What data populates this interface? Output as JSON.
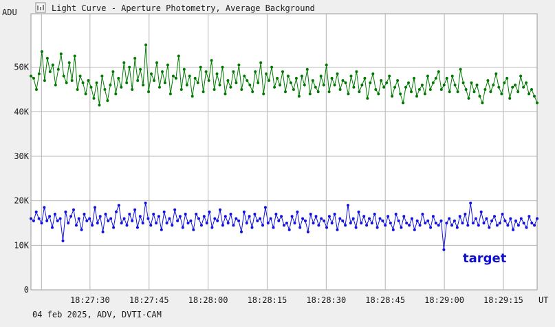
{
  "window": {
    "title": "Light Curve - Aperture Photometry, Average Background",
    "icon": "chart-icon"
  },
  "footer": {
    "date_source": "04 feb 2025, ADV, DVTI-CAM"
  },
  "chart_data": {
    "type": "line",
    "title": "Light Curve - Aperture Photometry, Average Background",
    "ylabel": "ADU",
    "xlabel": "UT",
    "ylim": [
      0,
      62000
    ],
    "xlim": [
      0,
      120
    ],
    "y_ticks": [
      {
        "value": 0,
        "label": "0"
      },
      {
        "value": 10000,
        "label": "10K"
      },
      {
        "value": 20000,
        "label": "20K"
      },
      {
        "value": 30000,
        "label": "30K"
      },
      {
        "value": 40000,
        "label": "40K"
      },
      {
        "value": 50000,
        "label": "50K"
      }
    ],
    "x_ticks": [
      {
        "value": 14,
        "label": "18:27:30"
      },
      {
        "value": 28,
        "label": "18:27:45"
      },
      {
        "value": 42,
        "label": "18:28:00"
      },
      {
        "value": 56,
        "label": "18:28:15"
      },
      {
        "value": 70,
        "label": "18:28:30"
      },
      {
        "value": 84,
        "label": "18:28:45"
      },
      {
        "value": 98,
        "label": "18:29:00"
      },
      {
        "value": 112,
        "label": "18:29:15"
      }
    ],
    "grid": true,
    "annotation": "target",
    "series": [
      {
        "color": "#007a00",
        "mean": 46500,
        "amplitude": 3200,
        "values": [
          48000,
          47500,
          45000,
          48500,
          53500,
          47000,
          52000,
          49000,
          50500,
          46000,
          49500,
          53000,
          48000,
          46500,
          51000,
          47000,
          52500,
          45000,
          48000,
          46500,
          44000,
          47000,
          45500,
          43000,
          46500,
          41500,
          48000,
          45000,
          42500,
          46000,
          49000,
          44000,
          47500,
          45500,
          51000,
          46500,
          50000,
          45000,
          52000,
          47000,
          49500,
          46000,
          55000,
          44500,
          48500,
          47000,
          51000,
          45500,
          49000,
          46500,
          50500,
          44000,
          48000,
          47500,
          52500,
          45000,
          49500,
          46000,
          48000,
          43500,
          47500,
          46500,
          50000,
          44500,
          49000,
          47000,
          51500,
          45000,
          48500,
          46000,
          50000,
          44000,
          47000,
          45500,
          49000,
          46500,
          50500,
          45000,
          48000,
          47000,
          46000,
          44500,
          49000,
          46500,
          51000,
          44000,
          48500,
          47000,
          50000,
          45500,
          47500,
          46000,
          49000,
          44500,
          48000,
          46500,
          45000,
          47500,
          43500,
          48000,
          46000,
          49500,
          44000,
          47000,
          45500,
          44500,
          48000,
          46000,
          50500,
          44500,
          47500,
          46000,
          48500,
          45000,
          47000,
          46500,
          44000,
          48000,
          45500,
          49000,
          44500,
          46000,
          47500,
          43000,
          46500,
          48500,
          45000,
          44000,
          47000,
          45500,
          46500,
          48000,
          43500,
          45500,
          47000,
          44000,
          42000,
          45500,
          46500,
          44500,
          47500,
          43500,
          45000,
          46000,
          44000,
          48000,
          45000,
          46500,
          47500,
          49000,
          45000,
          46000,
          47500,
          44500,
          48000,
          46000,
          44500,
          49500,
          46500,
          45000,
          43000,
          46500,
          44500,
          46000,
          43500,
          42000,
          45000,
          47000,
          44500,
          46000,
          48500,
          45500,
          44000,
          46500,
          47500,
          43000,
          45500,
          46000,
          44500,
          48000,
          45500,
          46500,
          44000,
          45000,
          43500,
          42000
        ]
      },
      {
        "color": "#1010e0",
        "mean": 15300,
        "amplitude": 1900,
        "values": [
          16000,
          15500,
          17500,
          16000,
          15000,
          18500,
          15500,
          16500,
          14000,
          17000,
          15500,
          16000,
          11000,
          17500,
          15000,
          16500,
          18000,
          14500,
          16000,
          13500,
          17000,
          15500,
          16000,
          14500,
          18500,
          15000,
          16500,
          13000,
          17000,
          15500,
          16000,
          14000,
          17500,
          19000,
          15000,
          16000,
          14500,
          17000,
          15500,
          18000,
          14000,
          16500,
          15000,
          19500,
          16000,
          14500,
          17000,
          15000,
          16500,
          13500,
          17500,
          15000,
          16000,
          14500,
          18000,
          15500,
          16500,
          14000,
          17000,
          15000,
          15500,
          13500,
          17000,
          16000,
          14500,
          16500,
          15000,
          17500,
          14000,
          16000,
          15500,
          18000,
          14500,
          16500,
          15000,
          17000,
          14500,
          16000,
          15500,
          13000,
          17500,
          15000,
          16500,
          14000,
          17000,
          15500,
          16000,
          14500,
          18500,
          15000,
          16000,
          14000,
          17000,
          15500,
          16500,
          14500,
          15000,
          13500,
          16500,
          15000,
          17500,
          14000,
          16000,
          15500,
          13000,
          17000,
          15000,
          16500,
          14500,
          16000,
          15500,
          14000,
          16500,
          15000,
          17000,
          13500,
          16000,
          15500,
          14500,
          19000,
          15000,
          16000,
          14000,
          17500,
          15000,
          16500,
          14500,
          16000,
          15000,
          17000,
          14000,
          16000,
          15500,
          14500,
          16500,
          15000,
          13500,
          17000,
          15500,
          14000,
          16500,
          15000,
          14500,
          16000,
          13500,
          15500,
          14500,
          17000,
          15000,
          15500,
          14000,
          16500,
          15000,
          14500,
          15500,
          9000,
          15000,
          16000,
          14500,
          15500,
          14000,
          16500,
          15000,
          17000,
          14500,
          19500,
          15000,
          16000,
          14500,
          17500,
          15000,
          16000,
          14000,
          15500,
          16500,
          14500,
          15000,
          17000,
          15500,
          14500,
          16000,
          13500,
          15500,
          14500,
          16000,
          15000,
          14000,
          16500,
          15000,
          14500,
          16000
        ]
      }
    ]
  }
}
